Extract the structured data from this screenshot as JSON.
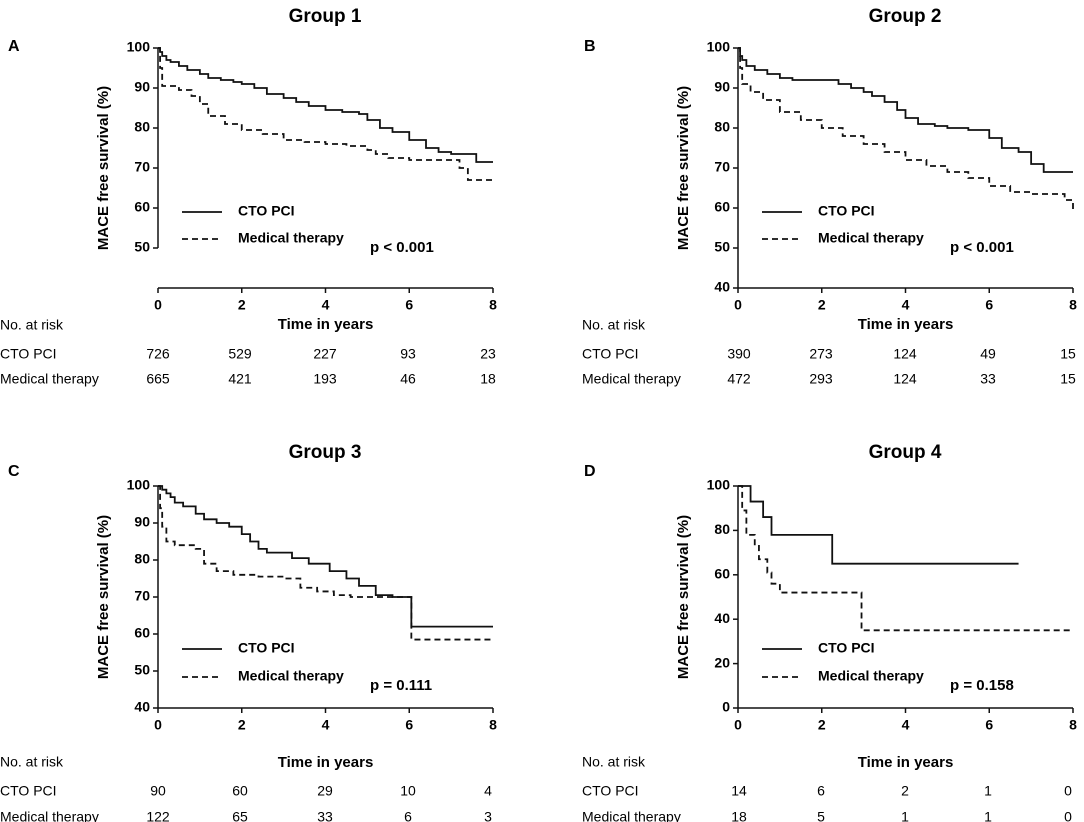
{
  "chart_data": [
    {
      "type": "line",
      "panel": "A",
      "title": "Group 1",
      "xlabel": "Time in years",
      "ylabel": "MACE free survival (%)",
      "xlim": [
        0,
        8
      ],
      "ylim": [
        40,
        100
      ],
      "y_axis_min_label": 50,
      "xticks": [
        0,
        2,
        4,
        6,
        8
      ],
      "yticks": [
        50,
        60,
        70,
        80,
        90,
        100
      ],
      "series": [
        {
          "name": "CTO PCI",
          "style": "solid",
          "x": [
            0,
            0.05,
            0.1,
            0.2,
            0.3,
            0.5,
            0.7,
            1.0,
            1.2,
            1.5,
            1.8,
            2.0,
            2.3,
            2.6,
            3.0,
            3.3,
            3.6,
            4.0,
            4.4,
            4.8,
            5.0,
            5.3,
            5.6,
            6.0,
            6.4,
            6.7,
            7.0,
            7.4,
            7.6,
            8.0
          ],
          "y": [
            100,
            99,
            98,
            97,
            96.5,
            95.5,
            94.5,
            93.5,
            92.5,
            92,
            91.5,
            91,
            90,
            88.5,
            87.5,
            86.5,
            85.5,
            84.5,
            84,
            83.5,
            82,
            80,
            79,
            77,
            75,
            74,
            73.5,
            73.5,
            71.5,
            71.5
          ]
        },
        {
          "name": "Medical therapy",
          "style": "dashed",
          "x": [
            0,
            0.05,
            0.1,
            0.5,
            0.8,
            1.0,
            1.2,
            1.6,
            2.0,
            2.5,
            3.0,
            3.5,
            4.0,
            4.5,
            5.0,
            5.2,
            5.5,
            6.0,
            6.5,
            7.0,
            7.2,
            7.4,
            8.0
          ],
          "y": [
            100,
            95,
            90.5,
            89.5,
            88,
            86,
            83,
            81,
            79.5,
            78.5,
            77,
            76.5,
            76,
            75.5,
            74.5,
            73.5,
            72.5,
            72,
            72,
            72,
            70,
            67,
            67
          ]
        }
      ],
      "legend": [
        "CTO PCI",
        "Medical therapy"
      ],
      "p_value": "p < 0.001",
      "risk_table": {
        "header": "No. at risk",
        "rows": [
          {
            "label": "CTO PCI",
            "values": [
              "726",
              "529",
              "227",
              "93",
              "23"
            ]
          },
          {
            "label": "Medical therapy",
            "values": [
              "665",
              "421",
              "193",
              "46",
              "18"
            ]
          }
        ]
      }
    },
    {
      "type": "line",
      "panel": "B",
      "title": "Group 2",
      "xlabel": "Time in years",
      "ylabel": "MACE free survival (%)",
      "xlim": [
        0,
        8
      ],
      "ylim": [
        40,
        100
      ],
      "y_axis_min_label": 40,
      "xticks": [
        0,
        2,
        4,
        6,
        8
      ],
      "yticks": [
        40,
        50,
        60,
        70,
        80,
        90,
        100
      ],
      "series": [
        {
          "name": "CTO PCI",
          "style": "solid",
          "x": [
            0,
            0.05,
            0.1,
            0.2,
            0.4,
            0.7,
            1.0,
            1.3,
            1.6,
            2.0,
            2.4,
            2.7,
            3.0,
            3.2,
            3.5,
            3.8,
            4.0,
            4.3,
            4.7,
            5.0,
            5.5,
            6.0,
            6.3,
            6.7,
            7.0,
            7.3,
            8.0
          ],
          "y": [
            100,
            98,
            97,
            95.5,
            94.5,
            93.5,
            92.5,
            92,
            92,
            92,
            91,
            90,
            89,
            88,
            86.5,
            84.5,
            82.5,
            81,
            80.5,
            80,
            79.5,
            77.5,
            75,
            74,
            71,
            69,
            69
          ]
        },
        {
          "name": "Medical therapy",
          "style": "dashed",
          "x": [
            0,
            0.05,
            0.1,
            0.3,
            0.6,
            1.0,
            1.5,
            2.0,
            2.5,
            3.0,
            3.5,
            4.0,
            4.5,
            5.0,
            5.5,
            6.0,
            6.5,
            7.0,
            7.5,
            7.8,
            8.0
          ],
          "y": [
            100,
            95,
            91,
            89,
            87,
            84,
            82,
            80,
            78,
            76,
            74,
            72,
            70.5,
            69,
            67.5,
            65.5,
            64,
            63.5,
            63.5,
            62,
            59.5
          ]
        }
      ],
      "legend": [
        "CTO PCI",
        "Medical therapy"
      ],
      "p_value": "p < 0.001",
      "risk_table": {
        "header": "No. at risk",
        "rows": [
          {
            "label": "CTO PCI",
            "values": [
              "390",
              "273",
              "124",
              "49",
              "15"
            ]
          },
          {
            "label": "Medical therapy",
            "values": [
              "472",
              "293",
              "124",
              "33",
              "15"
            ]
          }
        ]
      }
    },
    {
      "type": "line",
      "panel": "C",
      "title": "Group 3",
      "xlabel": "Time in years",
      "ylabel": "MACE free survival (%)",
      "xlim": [
        0,
        8
      ],
      "ylim": [
        40,
        100
      ],
      "y_axis_min_label": 40,
      "xticks": [
        0,
        2,
        4,
        6,
        8
      ],
      "yticks": [
        40,
        50,
        60,
        70,
        80,
        90,
        100
      ],
      "series": [
        {
          "name": "CTO PCI",
          "style": "solid",
          "x": [
            0,
            0.1,
            0.2,
            0.3,
            0.4,
            0.6,
            0.9,
            1.1,
            1.4,
            1.7,
            2.0,
            2.2,
            2.4,
            2.6,
            3.2,
            3.6,
            4.1,
            4.5,
            4.8,
            5.2,
            5.6,
            6.0,
            6.05,
            8.0
          ],
          "y": [
            100,
            99,
            98,
            97,
            95.5,
            94.5,
            92.5,
            91,
            90,
            89,
            87,
            85,
            83,
            82,
            80.5,
            79,
            77,
            75,
            73,
            70.5,
            70,
            70,
            62,
            62
          ]
        },
        {
          "name": "Medical therapy",
          "style": "dashed",
          "x": [
            0,
            0.05,
            0.1,
            0.2,
            0.4,
            0.9,
            1.1,
            1.4,
            1.8,
            2.4,
            3.0,
            3.4,
            3.8,
            4.2,
            4.6,
            5.0,
            5.6,
            6.0,
            6.05,
            8.0
          ],
          "y": [
            100,
            94,
            89,
            85,
            84,
            83,
            79,
            77,
            76,
            75.5,
            75,
            72.5,
            71.5,
            70.5,
            70,
            70,
            70,
            70,
            58.5,
            58.5
          ]
        }
      ],
      "legend": [
        "CTO PCI",
        "Medical therapy"
      ],
      "p_value": "p = 0.111",
      "risk_table": {
        "header": "No. at risk",
        "rows": [
          {
            "label": "CTO PCI",
            "values": [
              "90",
              "60",
              "29",
              "10",
              "4"
            ]
          },
          {
            "label": "Medical therapy",
            "values": [
              "122",
              "65",
              "33",
              "6",
              "3"
            ]
          }
        ]
      }
    },
    {
      "type": "line",
      "panel": "D",
      "title": "Group 4",
      "xlabel": "Time in years",
      "ylabel": "MACE free survival (%)",
      "xlim": [
        0,
        8
      ],
      "ylim": [
        0,
        100
      ],
      "y_axis_min_label": 0,
      "xticks": [
        0,
        2,
        4,
        6,
        8
      ],
      "yticks": [
        0,
        20,
        40,
        60,
        80,
        100
      ],
      "series": [
        {
          "name": "CTO PCI",
          "style": "solid",
          "x": [
            0,
            0.2,
            0.3,
            0.6,
            0.8,
            2.2,
            2.25,
            6.7
          ],
          "y": [
            100,
            100,
            93,
            86,
            78,
            78,
            65,
            65
          ]
        },
        {
          "name": "Medical therapy",
          "style": "dashed",
          "x": [
            0,
            0.1,
            0.2,
            0.4,
            0.5,
            0.7,
            0.8,
            1.0,
            2.9,
            2.95,
            8.0
          ],
          "y": [
            100,
            89,
            78,
            73,
            67,
            61,
            56,
            52,
            52,
            35,
            35
          ]
        }
      ],
      "legend": [
        "CTO PCI",
        "Medical therapy"
      ],
      "p_value": "p = 0.158",
      "risk_table": {
        "header": "No. at risk",
        "rows": [
          {
            "label": "CTO PCI",
            "values": [
              "14",
              "6",
              "2",
              "1",
              "0"
            ]
          },
          {
            "label": "Medical therapy",
            "values": [
              "18",
              "5",
              "1",
              "1",
              "0"
            ]
          }
        ]
      }
    }
  ]
}
